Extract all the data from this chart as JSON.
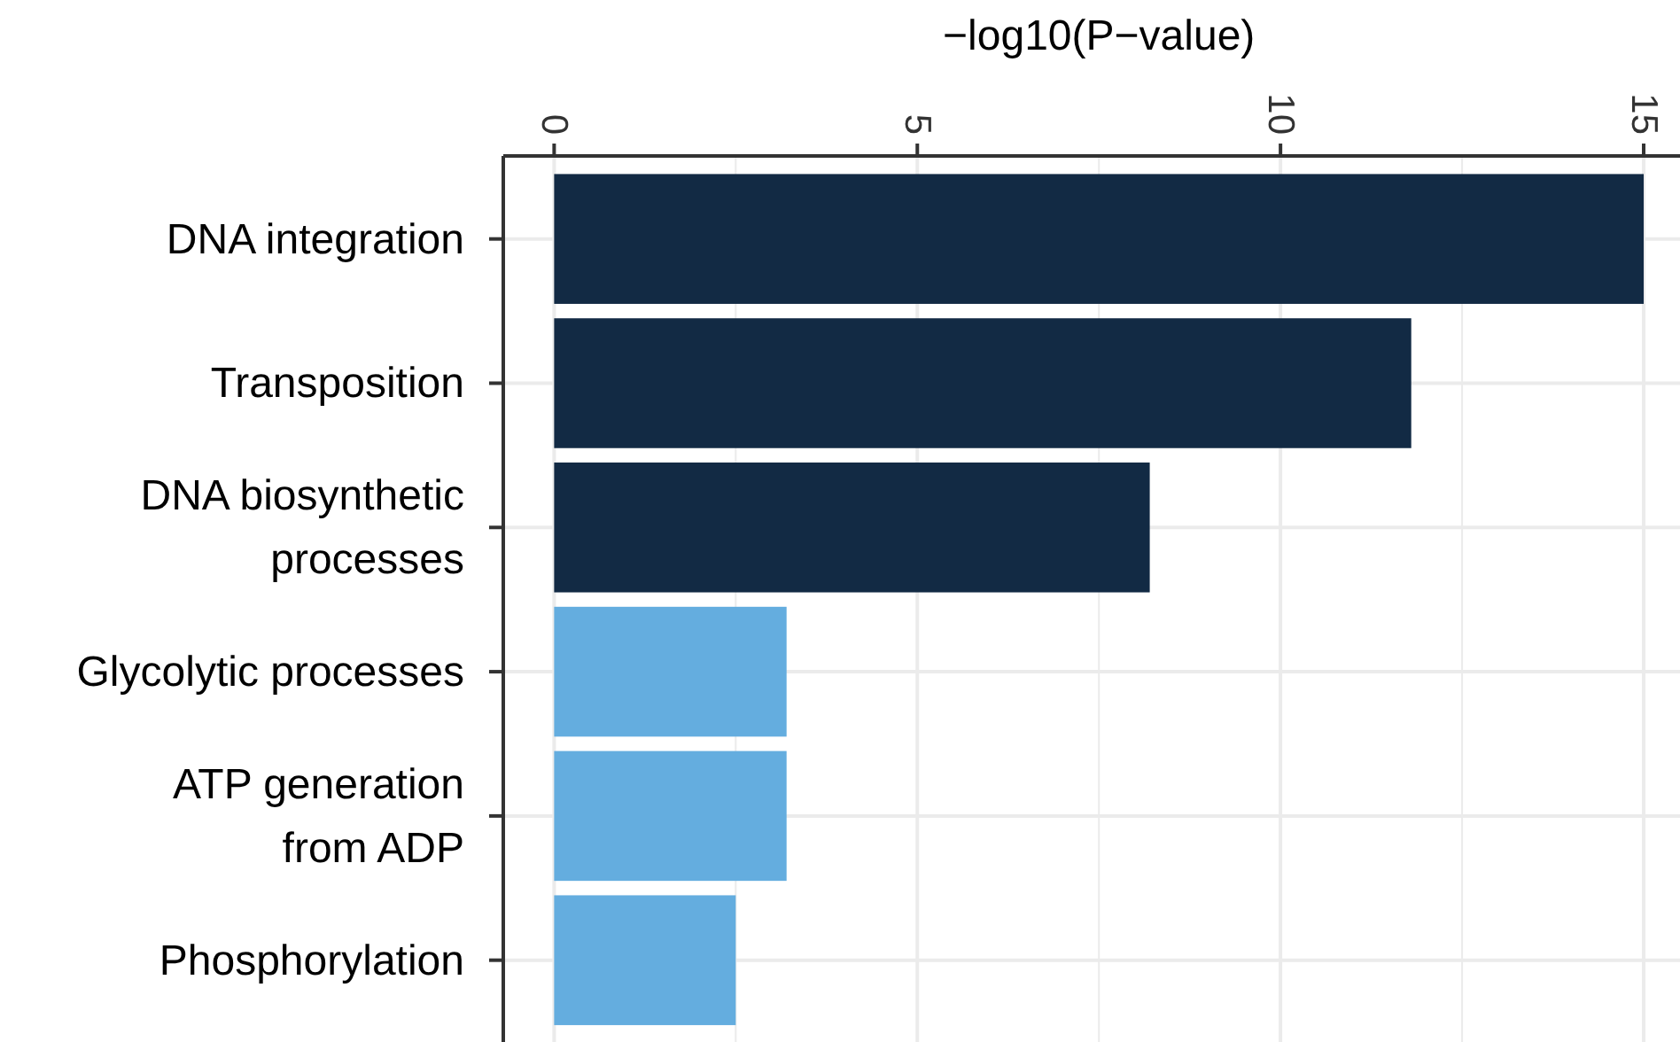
{
  "chart_data": {
    "type": "bar",
    "orientation": "horizontal",
    "xlabel": "−log10(P−value)",
    "categories": [
      "DNA integration",
      "Transposition",
      "DNA biosynthetic\nprocesses",
      "Glycolytic processes",
      "ATP generation\nfrom ADP",
      "Phosphorylation"
    ],
    "values": [
      15.0,
      11.8,
      8.2,
      3.2,
      3.2,
      2.5
    ],
    "colors": [
      "#122a44",
      "#122a44",
      "#122a44",
      "#64addf",
      "#64addf",
      "#64addf"
    ],
    "xlim": [
      -0.7,
      15.5
    ],
    "xticks": [
      0,
      5,
      10,
      15
    ],
    "grid": true
  }
}
